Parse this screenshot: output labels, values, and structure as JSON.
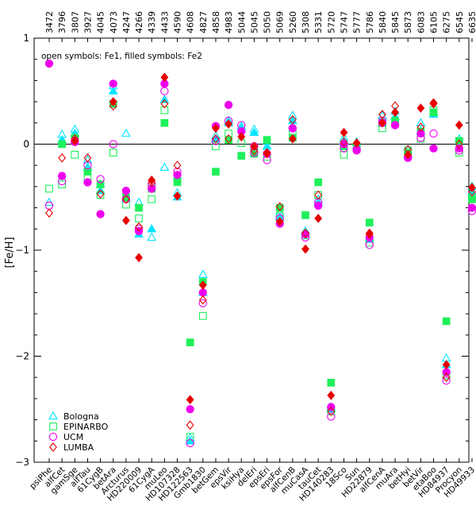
{
  "chart_data": {
    "type": "scatter",
    "ylabel": "[Fe/H]",
    "ylim": [
      -3,
      1
    ],
    "yticks": [
      -3,
      -2,
      -1,
      0,
      1
    ],
    "ytick_labels": [
      "−3",
      "−2",
      "−1",
      "0",
      "1"
    ],
    "reference_line": 0,
    "note": "open symbols: Fe1, filled symbols: Fe2",
    "legend_position": "bottom-left",
    "categories": [
      "psiPhe",
      "alfCet",
      "gamSge",
      "alfTau",
      "61CygB",
      "betAra",
      "Arcturus",
      "HD220009",
      "61CygA",
      "muLeo",
      "HD107328",
      "HD122563",
      "Gmb1830",
      "betGem",
      "epsVir",
      "ksiHya",
      "delEri",
      "epsEri",
      "epsFor",
      "alfCenB",
      "muCasA",
      "tauCet",
      "HD140283",
      "18Sco",
      "Sun",
      "HD22879",
      "alfCenA",
      "muAra",
      "betHyi",
      "betVir",
      "etaBoo",
      "HD84937",
      "Procyon",
      "HD49933"
    ],
    "teff": [
      "3472",
      "3796",
      "3807",
      "3927",
      "4045",
      "4073",
      "4247",
      "4266",
      "4339",
      "4433",
      "4590",
      "4608",
      "4827",
      "4858",
      "4983",
      "5044",
      "5045",
      "5050",
      "5069",
      "5260",
      "5308",
      "5331",
      "5720",
      "5747",
      "5777",
      "5786",
      "5840",
      "5845",
      "5873",
      "6083",
      "6105",
      "6275",
      "6545",
      "6635"
    ],
    "series": [
      {
        "name": "Bologna",
        "symbol": "triangle",
        "color": "#00e5ff",
        "fe1": [
          -0.55,
          0.09,
          0.14,
          -0.15,
          -0.38,
          0.55,
          0.1,
          -0.55,
          -0.88,
          -0.22,
          -0.46,
          -2.77,
          -1.23,
          0.08,
          0.22,
          0.17,
          0.14,
          0.03,
          -0.65,
          0.27,
          -0.82,
          -0.52,
          -2.48,
          0.06,
          0.02,
          -0.88,
          0.27,
          0.31,
          -0.05,
          0.2,
          0.3,
          -2.02,
          0.05,
          -0.4
        ],
        "fe2": [
          null,
          0.04,
          0.1,
          -0.22,
          -0.44,
          0.5,
          -0.51,
          -0.85,
          -0.8,
          0.42,
          -0.5,
          -2.8,
          -1.4,
          0.05,
          0.2,
          0.15,
          0.11,
          -0.02,
          -0.69,
          0.22,
          -0.85,
          -0.55,
          -2.5,
          0.03,
          -0.02,
          -0.9,
          0.2,
          0.26,
          -0.1,
          0.12,
          0.28,
          -2.08,
          0.02,
          -0.45
        ]
      },
      {
        "name": "EPINARBO",
        "symbol": "square",
        "color": "#1ff05a",
        "fe1": [
          -0.42,
          -0.38,
          -0.1,
          -0.32,
          -0.48,
          -0.08,
          -0.57,
          -0.7,
          -0.52,
          0.32,
          -0.36,
          -2.76,
          -1.62,
          -0.02,
          0.1,
          0.01,
          -0.05,
          -0.12,
          -0.68,
          0.1,
          -0.86,
          -0.48,
          -2.52,
          -0.1,
          -0.04,
          -0.93,
          0.15,
          0.2,
          -0.06,
          0.05,
          0.32,
          -2.18,
          -0.08,
          -0.5
        ],
        "fe2": [
          null,
          0.0,
          0.06,
          -0.26,
          -0.38,
          0.38,
          -0.5,
          -0.6,
          -0.42,
          0.2,
          -0.35,
          -1.87,
          -1.3,
          -0.26,
          0.04,
          -0.11,
          -0.09,
          0.04,
          -0.6,
          0.06,
          -0.67,
          -0.36,
          -2.25,
          -0.02,
          -0.02,
          -0.74,
          0.2,
          0.22,
          -0.08,
          0.12,
          0.3,
          -1.67,
          0.03,
          -0.52
        ]
      },
      {
        "name": "UCM",
        "symbol": "circle",
        "color": "#ee00ee",
        "fe1": [
          -0.58,
          -0.35,
          0.02,
          -0.2,
          -0.33,
          0.0,
          -0.52,
          -0.8,
          -0.38,
          0.5,
          -0.26,
          -2.82,
          -1.5,
          0.03,
          0.22,
          0.18,
          -0.08,
          -0.15,
          -0.7,
          0.15,
          -0.88,
          -0.55,
          -2.57,
          -0.04,
          -0.06,
          -0.95,
          0.22,
          0.18,
          -0.12,
          0.06,
          0.1,
          -2.23,
          -0.06,
          -0.63
        ],
        "fe2": [
          0.76,
          -0.3,
          0.03,
          -0.36,
          -0.66,
          0.57,
          -0.44,
          -0.82,
          -0.42,
          0.57,
          -0.29,
          -2.5,
          -1.4,
          0.17,
          0.37,
          0.12,
          -0.02,
          -0.09,
          -0.75,
          0.15,
          -0.85,
          -0.58,
          -2.48,
          0.0,
          -0.05,
          -0.88,
          0.2,
          0.18,
          -0.13,
          0.1,
          -0.04,
          -2.15,
          -0.04,
          -0.6
        ]
      },
      {
        "name": "LUMBA",
        "symbol": "diamond",
        "color": "#e60000",
        "fe1": [
          -0.65,
          -0.13,
          0.05,
          -0.13,
          -0.47,
          0.36,
          -0.52,
          -0.78,
          -0.36,
          0.38,
          -0.2,
          -2.65,
          -1.47,
          0.05,
          0.05,
          0.07,
          -0.06,
          -0.08,
          -0.59,
          0.23,
          -0.84,
          -0.48,
          -2.52,
          0.02,
          0.01,
          -0.85,
          0.28,
          0.36,
          -0.05,
          0.16,
          0.39,
          -2.2,
          0.0,
          -0.45
        ],
        "fe2": [
          null,
          null,
          0.03,
          null,
          null,
          0.4,
          -0.72,
          -1.07,
          -0.34,
          0.63,
          -0.49,
          -2.41,
          -1.33,
          0.15,
          0.19,
          0.07,
          -0.02,
          -0.09,
          -0.73,
          0.05,
          -0.99,
          -0.7,
          -2.37,
          0.11,
          0.01,
          -0.84,
          0.2,
          0.3,
          -0.1,
          0.34,
          0.38,
          -2.08,
          0.18,
          -0.41
        ]
      }
    ]
  }
}
